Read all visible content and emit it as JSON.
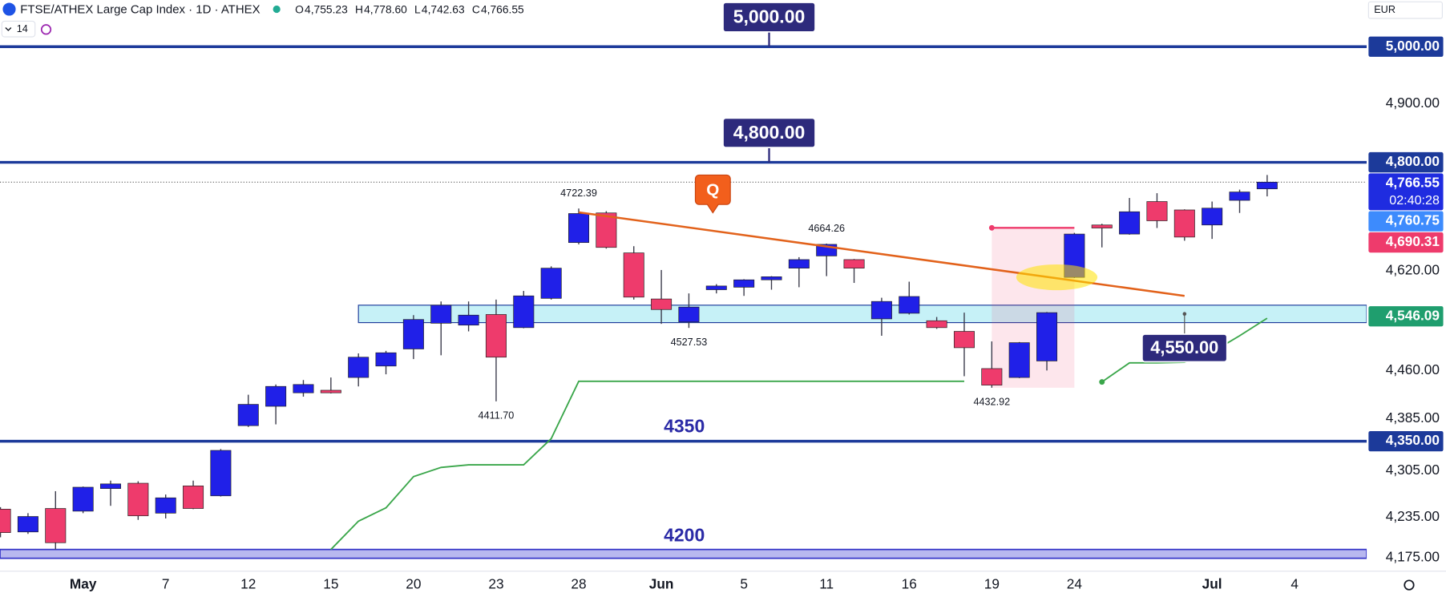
{
  "chart_data": {
    "type": "candlestick",
    "title": "FTSE/ATHEX Large Cap Index · 1D · ATHEX",
    "legend": [
      {
        "key": "O",
        "label": "4,755.23"
      },
      {
        "key": "H",
        "label": "4,778.60"
      },
      {
        "key": "L",
        "label": "4,742.63"
      },
      {
        "key": "C",
        "label": "4,766.55"
      }
    ],
    "indicator_setting": "14",
    "currency": "EUR",
    "alert_label": "Q",
    "categories": [
      null,
      null,
      null,
      "May",
      null,
      null,
      "7",
      null,
      null,
      "12",
      null,
      null,
      "15",
      null,
      null,
      "20",
      null,
      null,
      "23",
      null,
      null,
      "28",
      null,
      null,
      "Jun",
      null,
      null,
      "5",
      null,
      null,
      "11",
      null,
      null,
      "16",
      null,
      null,
      "19",
      null,
      null,
      "24",
      null,
      null,
      null,
      null,
      "Jul",
      null,
      null,
      "4"
    ],
    "open": [
      4247,
      4213,
      4248,
      4244,
      4278,
      4286,
      4241,
      4282,
      4267,
      4374,
      4404,
      4425,
      4429,
      4449,
      4467,
      4494,
      4535,
      4532,
      4549,
      4528,
      4575,
      4666,
      4715,
      4649,
      4574,
      4537,
      4589,
      4593,
      4605,
      4624,
      4644,
      4638,
      4542,
      4551,
      4539,
      4522,
      4463,
      4449,
      4475,
      4609,
      4695,
      4680,
      4734,
      4720,
      4695,
      4736,
      4755.23,
      null
    ],
    "high": [
      4250,
      4241,
      4274,
      4281,
      4290,
      4289,
      4269,
      4290,
      4338,
      4422,
      4438,
      4445,
      4449,
      4487,
      4491,
      4548,
      4570,
      4570,
      4573,
      4587,
      4627,
      4722.39,
      4718,
      4660,
      4621,
      4583,
      4598,
      4606,
      4611,
      4642,
      4664.26,
      4639,
      4576,
      4602,
      4545,
      4552,
      4506,
      4505,
      4553,
      4682,
      4697,
      4740,
      4748,
      4721,
      4734,
      4754,
      4778.6,
      null
    ],
    "low": [
      4205,
      4210,
      4187,
      4241,
      4252,
      4231,
      4233,
      4247,
      4266,
      4372,
      4376,
      4419,
      4424,
      4435,
      4454,
      4478,
      4484,
      4522,
      4411.7,
      4527,
      4573,
      4663,
      4656,
      4573,
      4534,
      4527.53,
      4583,
      4579,
      4589,
      4593,
      4611,
      4600,
      4515,
      4549,
      4526,
      4451,
      4432.92,
      4448,
      4460,
      4608,
      4658,
      4679,
      4690,
      4669,
      4672,
      4715,
      4742.63,
      null
    ],
    "close": [
      4212,
      4236,
      4197,
      4280,
      4285,
      4237,
      4264,
      4248,
      4336,
      4407,
      4435,
      4438,
      4425,
      4481,
      4488,
      4541,
      4564,
      4548,
      4481,
      4579,
      4624,
      4714,
      4658,
      4577,
      4557,
      4561,
      4595,
      4605,
      4610,
      4638,
      4663,
      4624,
      4570,
      4578,
      4528,
      4496,
      4437,
      4504,
      4552,
      4680,
      4690,
      4717,
      4702,
      4675,
      4723,
      4750,
      4766.55,
      null
    ],
    "high_labels": {
      "21": "4722.39",
      "30": "4664.26"
    },
    "low_labels": {
      "18": "4411.70",
      "25": "4527.53",
      "36": "4432.92"
    },
    "up_color": "#2020e8",
    "down_color": "#ee3b6c",
    "wick_color": "#3a3a4a",
    "indicator": {
      "color": "#3aa64a",
      "values": [
        null,
        null,
        null,
        null,
        null,
        null,
        null,
        null,
        null,
        null,
        null,
        null,
        4187,
        4229,
        4249,
        4296,
        4310,
        4314,
        4314,
        4314,
        4354,
        4443,
        4443,
        4443,
        4443,
        4443,
        4443,
        4443,
        4443,
        4443,
        4443,
        4443,
        4443,
        4443,
        4443,
        4443,
        null,
        null,
        null,
        null,
        4442,
        4472,
        4472,
        4473,
        4489,
        4515,
        4543,
        null
      ]
    },
    "ylim": [
      4155,
      5083
    ],
    "log_scale": true,
    "yticks": [
      {
        "value": 4900,
        "label": "4,900.00"
      },
      {
        "value": 4620,
        "label": "4,620.00"
      },
      {
        "value": 4460,
        "label": "4,460.00"
      },
      {
        "value": 4385,
        "label": "4,385.00"
      },
      {
        "value": 4305,
        "label": "4,305.00"
      },
      {
        "value": 4235,
        "label": "4,235.00"
      },
      {
        "value": 4175,
        "label": "4,175.00"
      }
    ],
    "levels": [
      {
        "value": 5000,
        "label": "5,000.00",
        "callout": "5,000.00"
      },
      {
        "value": 4800,
        "label": "4,800.00",
        "callout": "4,800.00"
      },
      {
        "value": 4350,
        "label": "4,350.00",
        "text": "4350"
      }
    ],
    "level_color": "#1c3a9a",
    "band": {
      "low": 4174,
      "high": 4187,
      "text": "4200"
    },
    "zone": {
      "low": 4536,
      "high": 4564
    },
    "last_price": {
      "value": 4766.55,
      "label": "4,766.55",
      "countdown": "02:40:28",
      "color": "#1f2ce0"
    },
    "markers": [
      {
        "value": 4760.75,
        "label": "4,760.75",
        "color": "#3d8bfd"
      },
      {
        "value": 4690.31,
        "label": "4,690.31",
        "color": "#ee3b6c"
      },
      {
        "value": 4546.09,
        "label": "4,546.09",
        "color": "#1f9e6e"
      }
    ],
    "price_note": {
      "value": 4550,
      "label": "4,550.00"
    },
    "trendline": {
      "x": [
        21,
        43
      ],
      "y": [
        4716,
        4579
      ],
      "color": "#e2621b"
    }
  }
}
